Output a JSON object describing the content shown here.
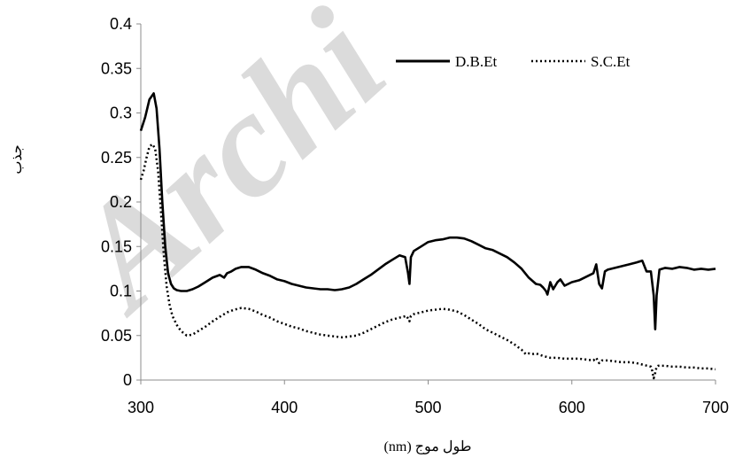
{
  "watermark": "Archi",
  "chart_data": {
    "type": "line",
    "xlabel": "طول موج (nm)",
    "ylabel": "جذب",
    "xlim": [
      300,
      700
    ],
    "ylim": [
      0,
      0.4
    ],
    "x_ticks": [
      "300",
      "400",
      "500",
      "600",
      "700"
    ],
    "y_ticks": [
      "0",
      "0.05",
      "0.1",
      "0.15",
      "0.2",
      "0.25",
      "0.3",
      "0.35",
      "0.4"
    ],
    "grid": false,
    "legend_position": "top-right",
    "series": [
      {
        "name": "D.B.Et",
        "style": "solid",
        "color": "#000000",
        "x": [
          300,
          303,
          306,
          309,
          311,
          313,
          315,
          317,
          319,
          321,
          323,
          325,
          328,
          332,
          336,
          340,
          345,
          350,
          355,
          358,
          360,
          363,
          366,
          370,
          375,
          380,
          385,
          390,
          395,
          400,
          405,
          410,
          415,
          420,
          425,
          430,
          435,
          440,
          445,
          450,
          455,
          460,
          465,
          470,
          475,
          480,
          484,
          486,
          487,
          488,
          490,
          495,
          500,
          505,
          510,
          515,
          520,
          525,
          530,
          535,
          540,
          545,
          550,
          555,
          560,
          565,
          570,
          575,
          578,
          580,
          582,
          583,
          585,
          587,
          590,
          592,
          595,
          600,
          605,
          610,
          615,
          617,
          619,
          621,
          623,
          625,
          630,
          635,
          640,
          645,
          649,
          652,
          655,
          657,
          658,
          659,
          661,
          665,
          670,
          675,
          680,
          685,
          690,
          695,
          700
        ],
        "y": [
          0.28,
          0.295,
          0.315,
          0.322,
          0.305,
          0.26,
          0.2,
          0.15,
          0.12,
          0.108,
          0.103,
          0.101,
          0.1,
          0.1,
          0.102,
          0.105,
          0.11,
          0.115,
          0.118,
          0.115,
          0.12,
          0.122,
          0.125,
          0.127,
          0.127,
          0.124,
          0.12,
          0.117,
          0.113,
          0.111,
          0.108,
          0.106,
          0.104,
          0.103,
          0.102,
          0.102,
          0.101,
          0.102,
          0.104,
          0.108,
          0.113,
          0.118,
          0.124,
          0.13,
          0.135,
          0.14,
          0.138,
          0.12,
          0.108,
          0.138,
          0.145,
          0.15,
          0.155,
          0.157,
          0.158,
          0.16,
          0.16,
          0.159,
          0.156,
          0.152,
          0.148,
          0.146,
          0.142,
          0.138,
          0.132,
          0.125,
          0.115,
          0.108,
          0.107,
          0.104,
          0.1,
          0.096,
          0.11,
          0.102,
          0.11,
          0.113,
          0.106,
          0.11,
          0.112,
          0.116,
          0.12,
          0.13,
          0.108,
          0.103,
          0.122,
          0.124,
          0.126,
          0.128,
          0.13,
          0.132,
          0.134,
          0.122,
          0.122,
          0.095,
          0.057,
          0.095,
          0.124,
          0.126,
          0.125,
          0.127,
          0.126,
          0.124,
          0.125,
          0.124,
          0.125
        ]
      },
      {
        "name": "S.C.Et",
        "style": "dotted",
        "color": "#000000",
        "x": [
          300,
          302,
          304,
          306,
          308,
          310,
          312,
          314,
          316,
          318,
          320,
          322,
          325,
          328,
          332,
          336,
          340,
          345,
          350,
          355,
          360,
          365,
          370,
          375,
          380,
          385,
          390,
          395,
          400,
          405,
          410,
          415,
          420,
          425,
          430,
          435,
          440,
          445,
          450,
          455,
          460,
          465,
          470,
          475,
          480,
          485,
          487,
          488,
          490,
          495,
          500,
          505,
          510,
          515,
          520,
          525,
          530,
          535,
          540,
          545,
          550,
          555,
          560,
          565,
          568,
          570,
          572,
          575,
          580,
          585,
          590,
          595,
          600,
          605,
          610,
          615,
          617,
          619,
          621,
          625,
          630,
          635,
          640,
          645,
          650,
          655,
          656,
          657,
          658,
          659,
          660,
          662,
          665,
          670,
          675,
          680,
          685,
          690,
          695,
          700
        ],
        "y": [
          0.225,
          0.235,
          0.25,
          0.262,
          0.265,
          0.26,
          0.235,
          0.19,
          0.14,
          0.105,
          0.085,
          0.072,
          0.062,
          0.055,
          0.05,
          0.051,
          0.055,
          0.06,
          0.066,
          0.071,
          0.076,
          0.079,
          0.081,
          0.08,
          0.077,
          0.073,
          0.07,
          0.066,
          0.063,
          0.06,
          0.058,
          0.055,
          0.053,
          0.051,
          0.05,
          0.049,
          0.048,
          0.049,
          0.05,
          0.053,
          0.057,
          0.061,
          0.065,
          0.068,
          0.07,
          0.072,
          0.066,
          0.072,
          0.074,
          0.076,
          0.078,
          0.079,
          0.08,
          0.079,
          0.077,
          0.073,
          0.068,
          0.063,
          0.057,
          0.053,
          0.049,
          0.045,
          0.04,
          0.034,
          0.029,
          0.03,
          0.029,
          0.03,
          0.027,
          0.025,
          0.025,
          0.024,
          0.024,
          0.024,
          0.023,
          0.022,
          0.025,
          0.019,
          0.022,
          0.022,
          0.021,
          0.02,
          0.02,
          0.019,
          0.017,
          0.015,
          0.01,
          0.002,
          0.008,
          0.015,
          0.016,
          0.016,
          0.016,
          0.015,
          0.015,
          0.014,
          0.014,
          0.013,
          0.013,
          0.012
        ]
      }
    ]
  }
}
